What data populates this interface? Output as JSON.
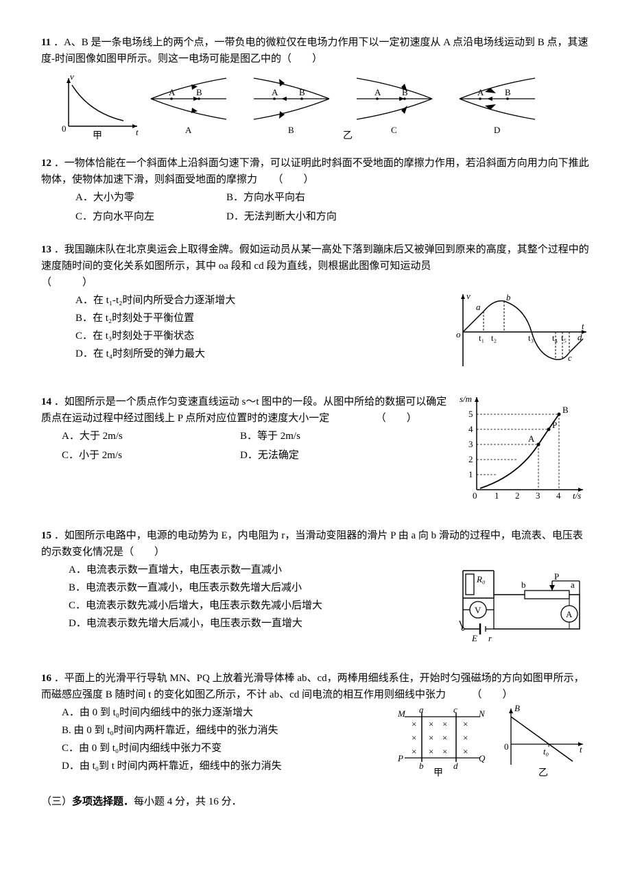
{
  "q11": {
    "num": "11",
    "stem1": "．A、B 是一条电场线上的两个点，一带负电的微粒仅在电场力作用下以一定初速度从 A 点沿电场线运动到 B 点，其速度-时间图像如图甲所示。则这一电场可能是图乙中的（　　）",
    "caption1": "甲",
    "caption2": "乙",
    "labels": {
      "A": "A",
      "B": "B",
      "C": "C",
      "D": "D",
      "v": "v",
      "t": "t",
      "o": "0"
    }
  },
  "q12": {
    "num": "12",
    "stem": "．一物体恰能在一个斜面体上沿斜面匀速下滑，可以证明此时斜面不受地面的摩擦力作用，若沿斜面方向用力向下推此物体，使物体加速下滑，则斜面受地面的摩擦力　　（　　）",
    "opts": {
      "A": "A．大小为零",
      "B": "B．方向水平向右",
      "C": "C．方向水平向左",
      "D": "D．无法判断大小和方向"
    }
  },
  "q13": {
    "num": "13",
    "stem": "．我国蹦床队在北京奥运会上取得金牌。假如运动员从某一高处下落到蹦床后又被弹回到原来的高度，其整个过程中的速度随时间的变化关系如图所示，其中 oa 段和 cd 段为直线，则根据此图像可知运动员　　　　　　　　　　　　　　　　　　　　（　　　）",
    "opts": {
      "A": "A．在 t₁-t₂时间内所受合力逐渐增大",
      "B": "B．在 t₂时刻处于平衡位置",
      "C": "C．在 t₃时刻处于平衡状态",
      "D": "D．在 t₄时刻所受的弹力最大"
    },
    "fig": {
      "v": "v",
      "t": "t",
      "o": "o",
      "a": "a",
      "b": "b",
      "c": "c",
      "d": "d",
      "t1": "t₁",
      "t2": "t₂",
      "t3": "t₃",
      "t4": "t₄",
      "t5": "t₅"
    }
  },
  "q14": {
    "num": "14",
    "stem": "．如图所示是一个质点作匀变速直线运动 s～t 图中的一段。从图中所给的数据可以确定质点在运动过程中经过图线上 P 点所对应位置时的速度大小一定　　　　　（　　）",
    "opts": {
      "A": "A．大于 2m/s",
      "B": "B．等于 2m/s",
      "C": "C．小于 2m/s",
      "D": "D．无法确定"
    },
    "fig": {
      "ylabel": "s/m",
      "xlabel": "t/s",
      "A": "A",
      "B": "B",
      "P": "P",
      "o": "0"
    }
  },
  "q15": {
    "num": "15",
    "stem": "．如图所示电路中，电源的电动势为 E，内电阻为 r，当滑动变阻器的滑片 P 由 a 向 b 滑动的过程中，电流表、电压表的示数变化情况是（　　）",
    "opts": {
      "A": "A．电流表示数一直增大，电压表示数一直减小",
      "B": "B．电流表示数一直减小，电压表示数先增大后减小",
      "C": "C．电流表示数先减小后增大，电压表示数先减小后增大",
      "D": "D．电流表示数先增大后减小，电压表示数一直增大"
    },
    "fig": {
      "R0": "R₀",
      "V": "V",
      "A": "A",
      "E": "E",
      "r": "r",
      "a": "a",
      "b": "b",
      "P": "P"
    }
  },
  "q16": {
    "num": "16",
    "stem": "．平面上的光滑平行导轨 MN、PQ 上放着光滑导体棒 ab、cd，两棒用细线系住，开始时匀强磁场的方向如图甲所示，而磁感应强度 B 随时间 t 的变化如图乙所示，不计 ab、cd 间电流的相互作用则细线中张力　　　（　　）",
    "opts": {
      "A": "A．由 0 到 t₀时间内细线中的张力逐渐增大",
      "B": "B. 由 0 到 t₀时间内两杆靠近，细线中的张力消失",
      "C": "C．由 0 到 t₀时间内细线中张力不变",
      "D": "D．由 t₀到 t 时间内两杆靠近，细线中的张力消失"
    },
    "fig": {
      "M": "M",
      "N": "N",
      "P": "P",
      "Q": "Q",
      "a": "a",
      "b": "b",
      "c": "c",
      "d": "d",
      "B": "B",
      "t": "t",
      "t0": "t₀",
      "cap1": "甲",
      "cap2": "乙",
      "o": "0"
    }
  },
  "section": "（三）多项选择题．每小题 4 分，共 16 分．"
}
